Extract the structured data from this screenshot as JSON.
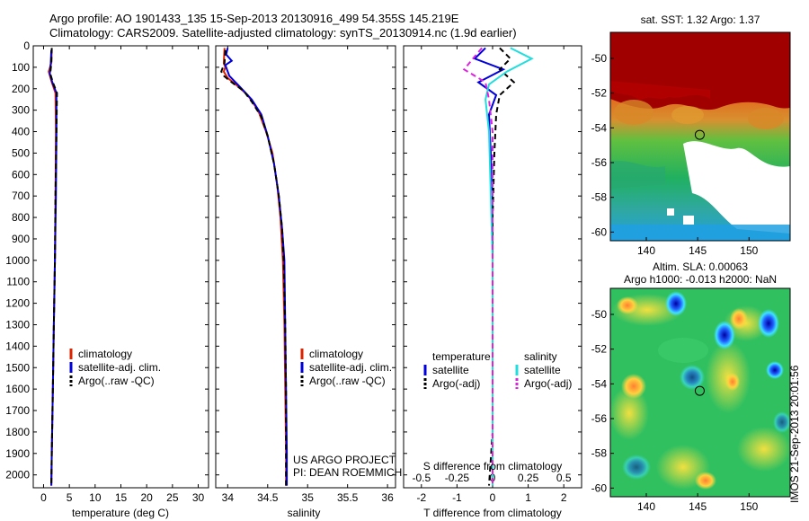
{
  "header": {
    "line1": "Argo profile: AO 1901433_135 15-Sep-2013 20130916_499 54.355S 145.219E",
    "line2": "Climatology: CARS2009. Satellite-adjusted climatology: synTS_20130914.nc (1.9d earlier)"
  },
  "colors": {
    "climatology": "#dd2200",
    "satellite": "#0000dd",
    "argo": "#000000",
    "satellite_salinity": "#22dddd",
    "argo_salinity": "#dd22dd"
  },
  "chart_data": [
    {
      "type": "line",
      "name": "temperature",
      "xlabel": "temperature (deg C)",
      "ylabel": "",
      "xlim": [
        -2,
        32
      ],
      "ylim": [
        2060,
        0
      ],
      "xticks": [
        0,
        5,
        10,
        15,
        20,
        25,
        30
      ],
      "yticks": [
        0,
        100,
        200,
        300,
        400,
        500,
        600,
        700,
        800,
        900,
        1000,
        1100,
        1200,
        1300,
        1400,
        1500,
        1600,
        1700,
        1800,
        1900,
        2000
      ],
      "legend": [
        "climatology",
        "satellite-adj. clim.",
        "Argo(..raw -QC)"
      ],
      "legend_position": "lower-center",
      "series": [
        {
          "name": "climatology",
          "color": "#dd2200",
          "dash": false,
          "points": [
            [
              1.6,
              20
            ],
            [
              1.5,
              80
            ],
            [
              1.0,
              120
            ],
            [
              1.6,
              170
            ],
            [
              2.3,
              220
            ],
            [
              2.4,
              400
            ],
            [
              2.3,
              700
            ],
            [
              2.2,
              1000
            ],
            [
              2.0,
              1300
            ],
            [
              1.8,
              1600
            ],
            [
              1.6,
              1900
            ],
            [
              1.5,
              2050
            ]
          ]
        },
        {
          "name": "satellite-adj. clim.",
          "color": "#0000dd",
          "dash": false,
          "points": [
            [
              1.5,
              20
            ],
            [
              1.4,
              80
            ],
            [
              1.2,
              130
            ],
            [
              1.7,
              170
            ],
            [
              2.5,
              220
            ],
            [
              2.5,
              400
            ],
            [
              2.4,
              700
            ],
            [
              2.2,
              1000
            ],
            [
              2.0,
              1300
            ],
            [
              1.8,
              1600
            ],
            [
              1.6,
              1900
            ],
            [
              1.5,
              2050
            ]
          ]
        },
        {
          "name": "Argo(..raw -QC)",
          "color": "#000000",
          "dash": true,
          "points": [
            [
              1.6,
              10
            ],
            [
              1.5,
              80
            ],
            [
              1.3,
              130
            ],
            [
              1.8,
              170
            ],
            [
              2.6,
              220
            ],
            [
              2.5,
              400
            ],
            [
              2.3,
              700
            ],
            [
              2.2,
              1000
            ],
            [
              2.0,
              1300
            ],
            [
              1.8,
              1600
            ],
            [
              1.6,
              1900
            ],
            [
              1.5,
              2050
            ]
          ]
        }
      ]
    },
    {
      "type": "line",
      "name": "salinity",
      "xlabel": "salinity",
      "ylabel": "",
      "xlim": [
        33.85,
        36.1
      ],
      "ylim": [
        2060,
        0
      ],
      "xticks": [
        34,
        34.5,
        35,
        35.5,
        36
      ],
      "xtick_labels": [
        "34",
        "34.5",
        "35",
        "35.5",
        "36"
      ],
      "legend": [
        "climatology",
        "satellite-adj. clim.",
        "Argo(..raw -QC)"
      ],
      "legend_position": "lower-center",
      "annotation": [
        "US ARGO PROJECT",
        "PI: DEAN ROEMMICH"
      ],
      "series": [
        {
          "name": "climatology",
          "color": "#dd2200",
          "dash": false,
          "points": [
            [
              33.96,
              10
            ],
            [
              33.95,
              80
            ],
            [
              33.97,
              100
            ],
            [
              33.95,
              120
            ],
            [
              34.0,
              150
            ],
            [
              34.1,
              180
            ],
            [
              34.25,
              230
            ],
            [
              34.38,
              300
            ],
            [
              34.48,
              400
            ],
            [
              34.56,
              500
            ],
            [
              34.62,
              650
            ],
            [
              34.66,
              800
            ],
            [
              34.69,
              1000
            ],
            [
              34.71,
              1300
            ],
            [
              34.72,
              1600
            ],
            [
              34.73,
              1900
            ],
            [
              34.73,
              2050
            ]
          ]
        },
        {
          "name": "satellite-adj. clim.",
          "color": "#0000dd",
          "dash": false,
          "points": [
            [
              34.0,
              10
            ],
            [
              33.98,
              40
            ],
            [
              34.05,
              70
            ],
            [
              33.97,
              90
            ],
            [
              34.02,
              140
            ],
            [
              34.15,
              190
            ],
            [
              34.3,
              250
            ],
            [
              34.42,
              320
            ],
            [
              34.5,
              420
            ],
            [
              34.58,
              550
            ],
            [
              34.64,
              700
            ],
            [
              34.68,
              850
            ],
            [
              34.71,
              1000
            ],
            [
              34.72,
              1300
            ],
            [
              34.73,
              1600
            ],
            [
              34.74,
              1900
            ],
            [
              34.74,
              2050
            ]
          ]
        },
        {
          "name": "Argo(..raw -QC)",
          "color": "#000000",
          "dash": true,
          "points": [
            [
              33.97,
              20
            ],
            [
              33.96,
              80
            ],
            [
              33.92,
              120
            ],
            [
              33.95,
              140
            ],
            [
              34.05,
              170
            ],
            [
              34.2,
              210
            ],
            [
              34.3,
              260
            ],
            [
              34.42,
              330
            ],
            [
              34.5,
              420
            ],
            [
              34.58,
              550
            ],
            [
              34.64,
              700
            ],
            [
              34.68,
              850
            ],
            [
              34.7,
              1000
            ],
            [
              34.72,
              1300
            ],
            [
              34.73,
              1600
            ],
            [
              34.73,
              1900
            ],
            [
              34.73,
              2050
            ]
          ]
        }
      ]
    },
    {
      "type": "line",
      "name": "difference",
      "xlabel": "T difference from climatology",
      "xlabel_top": "S difference from climatology",
      "xlim": [
        -2.5,
        2.5
      ],
      "ylim": [
        2060,
        0
      ],
      "xticks": [
        -2,
        -1,
        0,
        1,
        2
      ],
      "top_ticks": [
        -0.5,
        -0.25,
        0,
        0.25,
        0.5
      ],
      "top_tick_labels": [
        "-0.5",
        "-0.25",
        "0",
        "0.25",
        "0.5"
      ],
      "legend_title_left": "temperature",
      "legend_title_right": "salinity",
      "legend_left": [
        "satellite",
        "Argo(-adj)"
      ],
      "legend_right": [
        "satellite",
        "Argo(-adj)"
      ],
      "legend_position": "lower-center",
      "series": [
        {
          "name": "temperature satellite",
          "color": "#0000dd",
          "dash": false,
          "points": [
            [
              -0.2,
              10
            ],
            [
              -0.5,
              60
            ],
            [
              0.3,
              110
            ],
            [
              -0.4,
              170
            ],
            [
              0.1,
              230
            ],
            [
              -0.1,
              320
            ],
            [
              -0.05,
              500
            ],
            [
              0,
              800
            ],
            [
              0,
              1200
            ],
            [
              0,
              1600
            ],
            [
              0,
              2050
            ]
          ]
        },
        {
          "name": "temperature Argo(-adj)",
          "color": "#000000",
          "dash": true,
          "points": [
            [
              0.2,
              10
            ],
            [
              0.5,
              60
            ],
            [
              0.2,
              110
            ],
            [
              0.6,
              170
            ],
            [
              0.2,
              230
            ],
            [
              0.1,
              320
            ],
            [
              0.05,
              500
            ],
            [
              0,
              800
            ],
            [
              0,
              1200
            ],
            [
              0,
              1800
            ],
            [
              -0.1,
              2050
            ]
          ]
        },
        {
          "name": "salinity satellite",
          "color": "#22dddd",
          "dash": false,
          "points": [
            [
              0.5,
              10
            ],
            [
              1.1,
              60
            ],
            [
              0.4,
              120
            ],
            [
              -0.1,
              180
            ],
            [
              -0.2,
              250
            ],
            [
              -0.1,
              400
            ],
            [
              -0.05,
              700
            ],
            [
              0,
              1000
            ],
            [
              0,
              1500
            ],
            [
              0,
              2050
            ]
          ]
        },
        {
          "name": "salinity Argo(-adj)",
          "color": "#dd22dd",
          "dash": true,
          "points": [
            [
              -0.3,
              10
            ],
            [
              -0.6,
              70
            ],
            [
              -0.8,
              110
            ],
            [
              -0.2,
              170
            ],
            [
              -0.1,
              250
            ],
            [
              0,
              400
            ],
            [
              0,
              700
            ],
            [
              0,
              1200
            ],
            [
              0,
              2050
            ]
          ]
        }
      ]
    },
    {
      "type": "heatmap",
      "name": "sst-map",
      "title": "sat. SST: 1.32 Argo: 1.37",
      "xlim": [
        136.5,
        154
      ],
      "ylim": [
        -60.5,
        -48.5
      ],
      "xticks": [
        140,
        145,
        150
      ],
      "yticks": [
        -50,
        -52,
        -54,
        -56,
        -58,
        -60
      ],
      "marker": [
        145.2,
        -54.4
      ]
    },
    {
      "type": "heatmap",
      "name": "sla-map",
      "title": "Altim. SLA: 0.00063",
      "subtitle": "Argo h1000: -0.013 h2000: NaN",
      "xlim": [
        136.5,
        154
      ],
      "ylim": [
        -60.5,
        -48.5
      ],
      "xticks": [
        140,
        145,
        150
      ],
      "yticks": [
        -50,
        -52,
        -54,
        -56,
        -58,
        -60
      ],
      "marker": [
        145.2,
        -54.4
      ]
    }
  ],
  "footer": {
    "timestamp": "IMOS 21-Sep-2013 20:01:56"
  }
}
